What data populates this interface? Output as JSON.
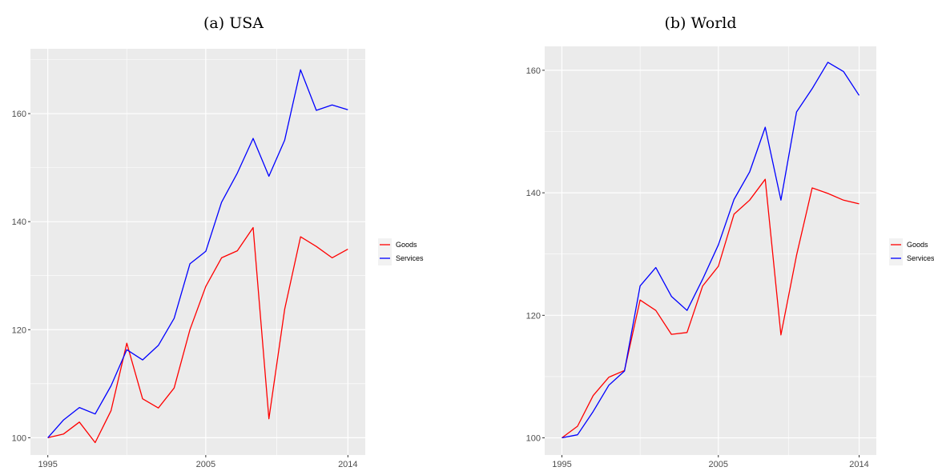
{
  "chart_data": [
    {
      "type": "line",
      "title": "(a) USA",
      "xlabel": "",
      "ylabel": "",
      "x": [
        1995,
        1996,
        1997,
        1998,
        1999,
        2000,
        2001,
        2002,
        2003,
        2004,
        2005,
        2006,
        2007,
        2008,
        2009,
        2010,
        2011,
        2012,
        2013,
        2014
      ],
      "xticks": [
        1995,
        2005,
        2014
      ],
      "yticks": [
        100,
        120,
        140,
        160
      ],
      "xlim": [
        1993.9,
        2015.1
      ],
      "ylim": [
        96.8,
        172.0
      ],
      "grid": true,
      "legend_position": "right",
      "series": [
        {
          "name": "Goods",
          "color": "#ff0000",
          "values": [
            100.0,
            100.7,
            102.9,
            99.1,
            105.0,
            117.5,
            107.2,
            105.5,
            109.2,
            120.0,
            128.0,
            133.3,
            134.6,
            138.9,
            103.5,
            123.8,
            137.2,
            135.4,
            133.3,
            134.9
          ]
        },
        {
          "name": "Services",
          "color": "#0000ff",
          "values": [
            100.0,
            103.3,
            105.6,
            104.4,
            109.6,
            116.3,
            114.4,
            117.1,
            122.1,
            132.2,
            134.5,
            143.6,
            149.0,
            155.4,
            148.4,
            155.1,
            168.1,
            160.6,
            161.6,
            160.7
          ]
        }
      ]
    },
    {
      "type": "line",
      "title": "(b) World",
      "xlabel": "",
      "ylabel": "",
      "x": [
        1995,
        1996,
        1997,
        1998,
        1999,
        2000,
        2001,
        2002,
        2003,
        2004,
        2005,
        2006,
        2007,
        2008,
        2009,
        2010,
        2011,
        2012,
        2013,
        2014
      ],
      "xticks": [
        1995,
        2005,
        2014
      ],
      "yticks": [
        100,
        120,
        140,
        160
      ],
      "xlim": [
        1993.9,
        2015.1
      ],
      "ylim": [
        97.2,
        163.9
      ],
      "grid": true,
      "legend_position": "right",
      "series": [
        {
          "name": "Goods",
          "color": "#ff0000",
          "values": [
            100.0,
            101.9,
            106.9,
            109.9,
            111.0,
            122.5,
            120.8,
            116.9,
            117.2,
            124.8,
            128.0,
            136.5,
            138.8,
            142.2,
            116.8,
            129.8,
            140.8,
            139.9,
            138.8,
            138.2
          ]
        },
        {
          "name": "Services",
          "color": "#0000ff",
          "values": [
            100.0,
            100.5,
            104.3,
            108.6,
            110.9,
            124.8,
            127.8,
            123.1,
            120.8,
            125.9,
            131.5,
            138.9,
            143.4,
            150.7,
            138.8,
            153.2,
            157.0,
            161.3,
            159.8,
            155.9
          ]
        }
      ]
    }
  ]
}
